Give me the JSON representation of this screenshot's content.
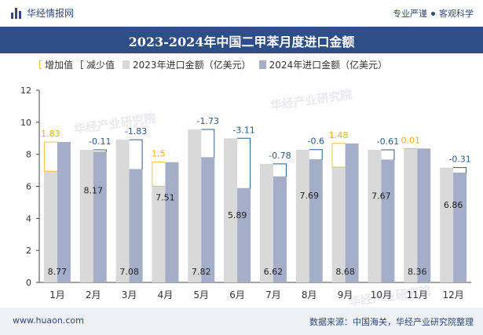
{
  "header": {
    "brand": "华经情报网",
    "tag1": "专业严谨",
    "tag2": "客观科学"
  },
  "title": "2023-2024年中国二甲苯月度进口金额",
  "legend": {
    "increase": "增加值",
    "decrease": "减少值",
    "series2023": "2023年进口金额（亿美元）",
    "series2024": "2024年进口金额（亿美元）"
  },
  "watermark": "华经产业研究院",
  "watermark_url": "www.huaon.com",
  "footer": {
    "url": "www.huaon.com",
    "source": "数据来源：中国海关，华经产业研究院整理"
  },
  "colors": {
    "series2023": "#d9d9d9",
    "series2024": "#a4aec8",
    "increase": "#f2c230",
    "decrease": "#2d5b86",
    "title_bg": "#2d4e86"
  },
  "chart_data": {
    "type": "bar",
    "categories": [
      "1月",
      "2月",
      "3月",
      "4月",
      "5月",
      "6月",
      "7月",
      "8月",
      "9月",
      "10月",
      "11月",
      "12月"
    ],
    "series": [
      {
        "name": "2023年进口金额（亿美元）",
        "values": [
          6.94,
          8.28,
          8.91,
          6.01,
          9.55,
          9.0,
          7.4,
          8.29,
          7.2,
          8.28,
          8.35,
          7.17
        ]
      },
      {
        "name": "2024年进口金额（亿美元）",
        "values": [
          8.77,
          8.17,
          7.08,
          7.51,
          7.82,
          5.89,
          6.62,
          7.69,
          8.68,
          7.67,
          8.36,
          6.86
        ]
      }
    ],
    "changes": [
      "1.83",
      "-0.11",
      "-1.83",
      "1.5",
      "-1.73",
      "-3.11",
      "-0.78",
      "-0.6",
      "1.48",
      "-0.61",
      "0.01",
      "-0.31"
    ],
    "yticks": [
      "0",
      "2",
      "4",
      "6",
      "8",
      "10",
      "12"
    ],
    "ylim": [
      0,
      12
    ],
    "grid": false,
    "legend_position": "top"
  }
}
